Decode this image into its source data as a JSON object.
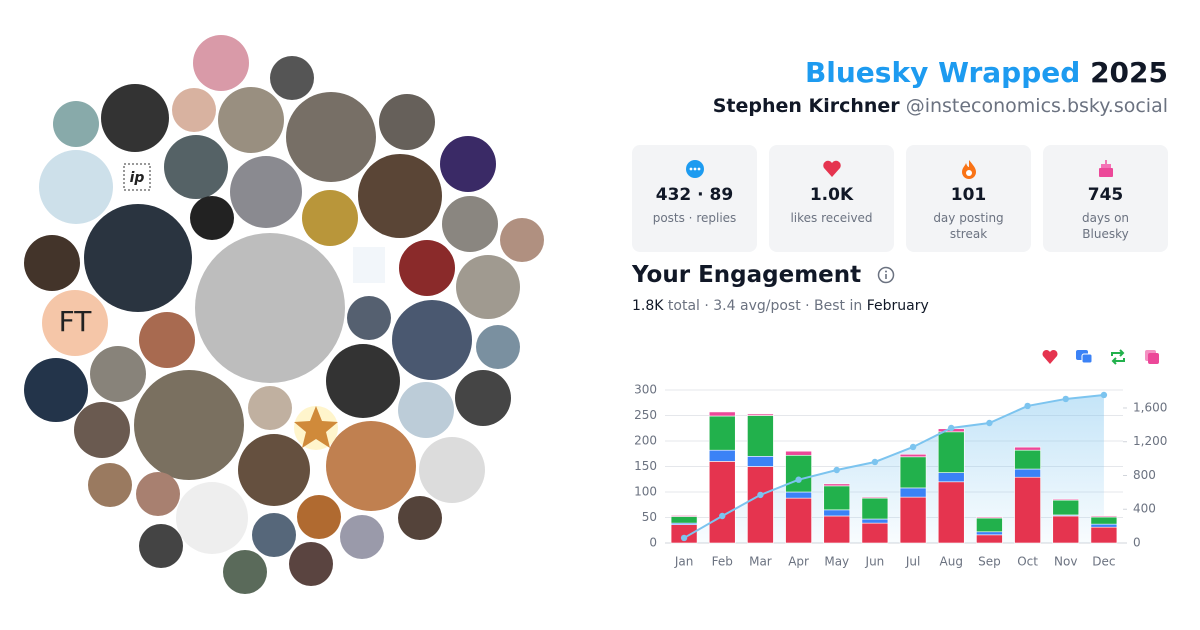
{
  "header": {
    "title": "Bluesky Wrapped",
    "year": "2025",
    "name": "Stephen Kirchner",
    "handle": "@insteconomics.bsky.social"
  },
  "stats": [
    {
      "value": "432 · 89",
      "label": "posts · replies"
    },
    {
      "value": "1.0K",
      "label": "likes received"
    },
    {
      "value": "101",
      "label": "day posting streak"
    },
    {
      "value": "745",
      "label": "days on Bluesky"
    }
  ],
  "avatar_labels": [
    "FT",
    "ip"
  ],
  "engagement": {
    "title": "Your Engagement",
    "total": "1.8K",
    "summary": "total · 3.4 avg/post · Best in",
    "best": "February"
  },
  "chart_data": {
    "type": "bar",
    "stacked": true,
    "categories": [
      "Jan",
      "Feb",
      "Mar",
      "Apr",
      "May",
      "Jun",
      "Jul",
      "Aug",
      "Sep",
      "Oct",
      "Nov",
      "Dec"
    ],
    "series": [
      {
        "color": "#e5344f",
        "values": [
          36,
          160,
          150,
          88,
          53,
          39,
          90,
          120,
          16,
          129,
          53,
          31
        ]
      },
      {
        "color": "#3b82f6",
        "values": [
          3,
          22,
          20,
          12,
          12,
          8,
          18,
          18,
          6,
          16,
          2,
          6
        ]
      },
      {
        "color": "#22b14c",
        "values": [
          13,
          67,
          80,
          72,
          47,
          41,
          61,
          80,
          27,
          37,
          29,
          14
        ]
      },
      {
        "color": "#ec4899",
        "values": [
          2,
          8,
          3,
          8,
          4,
          2,
          5,
          6,
          2,
          6,
          2,
          2
        ]
      },
      {
        "type": "line",
        "axis": "y2",
        "color": "#7cc4ef",
        "values": [
          60,
          320,
          570,
          750,
          865,
          960,
          1138,
          1363,
          1422,
          1624,
          1707,
          1754
        ]
      }
    ],
    "ylim": [
      0,
      300
    ],
    "yticks": [
      0,
      50,
      100,
      150,
      200,
      250,
      300
    ],
    "y2lim": [
      0,
      1813
    ],
    "y2ticks": [
      0,
      400,
      800,
      {
        "value": 1200,
        "label": "1,200"
      },
      {
        "value": 1600,
        "label": "1,600"
      }
    ],
    "grid": true
  }
}
